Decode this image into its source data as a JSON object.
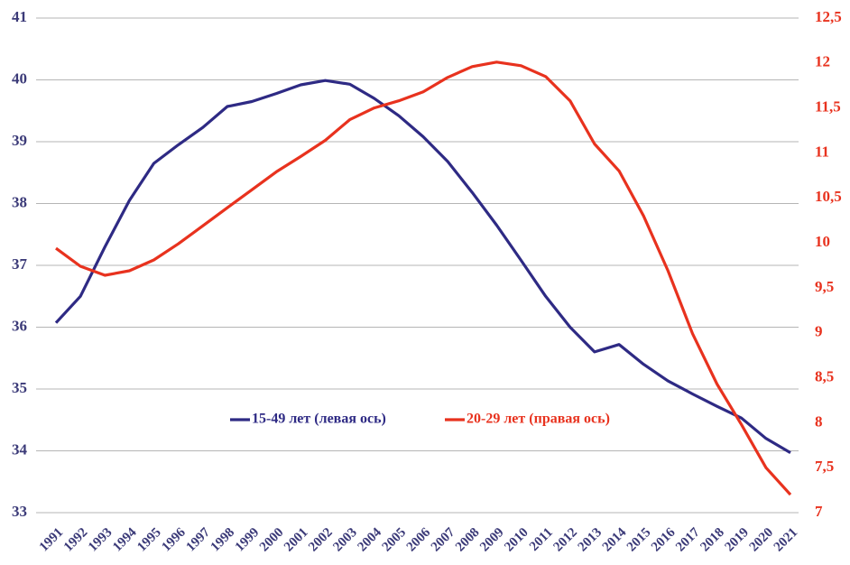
{
  "chart_data": {
    "type": "line",
    "categories": [
      "1991",
      "1992",
      "1993",
      "1994",
      "1995",
      "1996",
      "1997",
      "1998",
      "1999",
      "2000",
      "2001",
      "2002",
      "2003",
      "2004",
      "2005",
      "2006",
      "2007",
      "2008",
      "2009",
      "2010",
      "2011",
      "2012",
      "2013",
      "2014",
      "2015",
      "2016",
      "2017",
      "2018",
      "2019",
      "2020",
      "2021"
    ],
    "series": [
      {
        "name": "15-49 лет (левая ось)",
        "color": "#2e2a84",
        "axis": "y",
        "values": [
          36.07,
          36.5,
          37.3,
          38.05,
          38.65,
          38.95,
          39.23,
          39.57,
          39.65,
          39.78,
          39.92,
          39.99,
          39.93,
          39.7,
          39.42,
          39.08,
          38.68,
          38.18,
          37.65,
          37.08,
          36.5,
          36.0,
          35.6,
          35.72,
          35.4,
          35.13,
          34.92,
          34.72,
          34.53,
          34.2,
          33.97
        ]
      },
      {
        "name": "20-29 лет (правая ось)",
        "color": "#e8321e",
        "axis": "y2",
        "values": [
          9.94,
          9.74,
          9.64,
          9.69,
          9.81,
          9.99,
          10.19,
          10.39,
          10.59,
          10.79,
          10.96,
          11.14,
          11.37,
          11.5,
          11.58,
          11.68,
          11.84,
          11.96,
          12.01,
          11.97,
          11.85,
          11.58,
          11.1,
          10.8,
          10.3,
          9.69,
          8.99,
          8.43,
          7.98,
          7.5,
          7.2
        ]
      }
    ],
    "ylim": [
      33,
      41
    ],
    "yticks": [
      33,
      34,
      35,
      36,
      37,
      38,
      39,
      40,
      41
    ],
    "y2lim": [
      7,
      12.5
    ],
    "y2ticks": [
      7,
      {
        "value": 7.5,
        "label": "7,5"
      },
      8,
      {
        "value": 8.5,
        "label": "8,5"
      },
      9,
      {
        "value": 9.5,
        "label": "9,5"
      },
      10,
      {
        "value": 10.5,
        "label": "10,5"
      },
      11,
      {
        "value": 11.5,
        "label": "11,5"
      },
      12,
      {
        "value": 12.5,
        "label": "12,5"
      }
    ],
    "grid": true
  }
}
